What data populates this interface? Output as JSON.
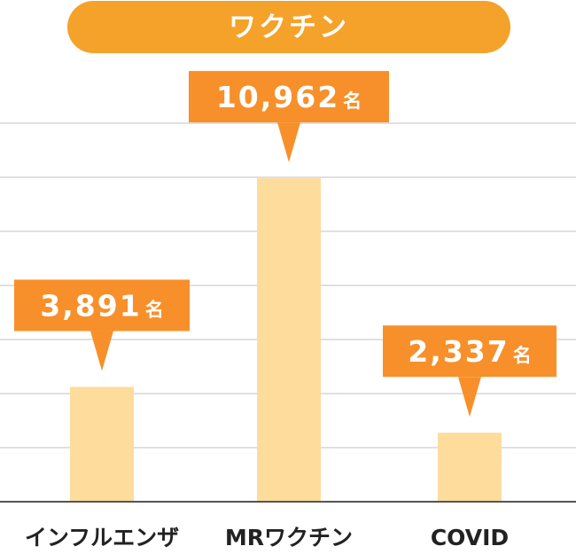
{
  "chart_data": {
    "type": "bar",
    "title": "ワクチン",
    "categories": [
      "インフルエンザ",
      "MRワクチン",
      "COVID"
    ],
    "values": [
      3891,
      10962,
      2337
    ],
    "value_labels": [
      "3,891",
      "10,962",
      "2,337"
    ],
    "unit": "名",
    "ylim": [
      0,
      14750
    ],
    "grid": true,
    "legend": "none",
    "colors": {
      "title_pill": "#F5A22A",
      "callout": "#F7902A",
      "bar": "#FDDC9C",
      "grid": "#D6D6D6",
      "axis": "#555555",
      "text_dark": "#222222",
      "text_light": "#FFFFFF"
    }
  }
}
